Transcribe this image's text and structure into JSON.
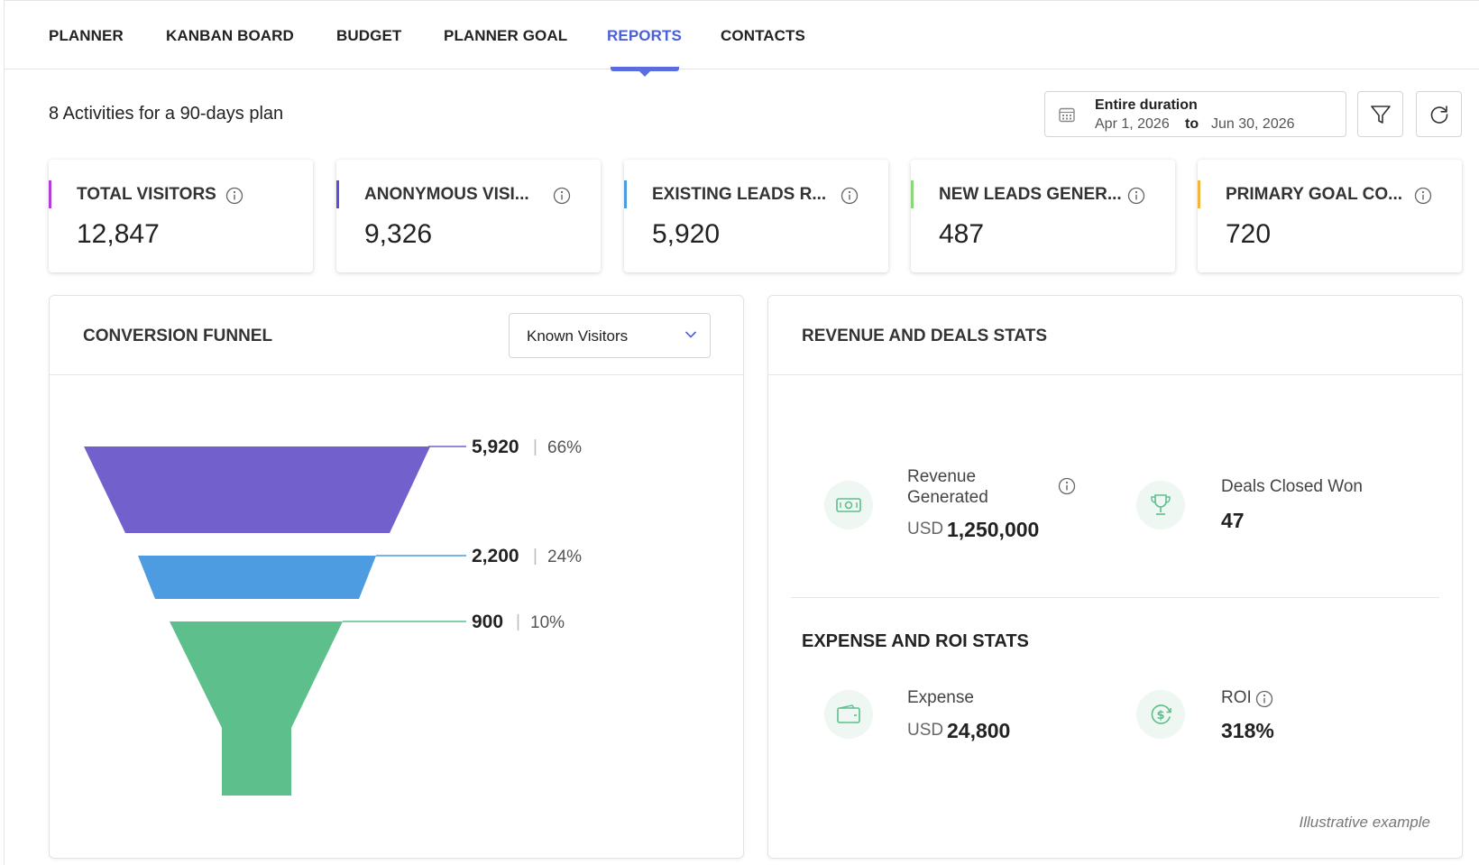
{
  "nav": {
    "tabs": [
      {
        "label": "PLANNER"
      },
      {
        "label": "KANBAN BOARD"
      },
      {
        "label": "BUDGET"
      },
      {
        "label": "PLANNER GOAL"
      },
      {
        "label": "REPORTS",
        "active": true
      },
      {
        "label": "CONTACTS"
      }
    ]
  },
  "header": {
    "subtitle": "8 Activities for a 90-days plan",
    "date_range": {
      "label": "Entire duration",
      "from": "Apr 1, 2026",
      "to_word": "to",
      "to": "Jun 30, 2026"
    },
    "icons": [
      "calendar-icon",
      "filter-icon",
      "refresh-icon"
    ]
  },
  "kpis": [
    {
      "label": "TOTAL VISITORS",
      "value": "12,847",
      "color": "#b23fd6"
    },
    {
      "label": "ANONYMOUS VISI...",
      "value": "9,326",
      "color": "#5b4fd0"
    },
    {
      "label": "EXISTING LEADS R...",
      "value": "5,920",
      "color": "#4b9be0"
    },
    {
      "label": "NEW LEADS GENER...",
      "value": "487",
      "color": "#8ed67a"
    },
    {
      "label": "PRIMARY GOAL CO...",
      "value": "720",
      "color": "#f0b640"
    }
  ],
  "funnel": {
    "title": "CONVERSION FUNNEL",
    "dropdown_value": "Known Visitors",
    "stages": [
      {
        "value": "5,920",
        "percent": "66%",
        "color": "#7260cc"
      },
      {
        "value": "2,200",
        "percent": "24%",
        "color": "#4d9be0"
      },
      {
        "value": "900",
        "percent": "10%",
        "color": "#5cbf8c"
      }
    ]
  },
  "revenue": {
    "title": "REVENUE AND DEALS STATS",
    "revenue_label_line1": "Revenue",
    "revenue_label_line2": "Generated",
    "revenue_currency": "USD",
    "revenue_value": "1,250,000",
    "deals_label": "Deals Closed Won",
    "deals_value": "47"
  },
  "expense": {
    "title": "EXPENSE AND ROI STATS",
    "expense_label": "Expense",
    "expense_currency": "USD",
    "expense_value": "24,800",
    "roi_label": "ROI",
    "roi_value": "318%"
  },
  "footnote": "Illustrative example",
  "accent_color": "#4a5fd8",
  "icon_color": "#5cbf8c"
}
